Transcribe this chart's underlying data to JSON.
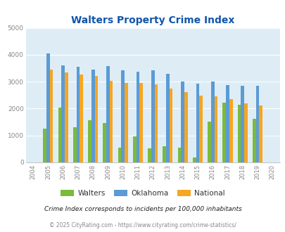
{
  "title": "Walters Property Crime Index",
  "years_all": [
    2004,
    2005,
    2006,
    2007,
    2008,
    2009,
    2010,
    2011,
    2012,
    2013,
    2014,
    2015,
    2016,
    2017,
    2018,
    2019,
    2020
  ],
  "walters": [
    null,
    1260,
    2050,
    1310,
    1580,
    1450,
    540,
    970,
    520,
    610,
    560,
    170,
    1510,
    2220,
    2130,
    1630,
    null
  ],
  "oklahoma": [
    null,
    4050,
    3610,
    3540,
    3450,
    3570,
    3420,
    3360,
    3430,
    3300,
    3000,
    2920,
    3010,
    2870,
    2860,
    2840,
    null
  ],
  "national": [
    null,
    3450,
    3340,
    3260,
    3220,
    3040,
    2950,
    2940,
    2890,
    2730,
    2600,
    2490,
    2460,
    2360,
    2200,
    2120,
    null
  ],
  "walters_color": "#7cba3a",
  "oklahoma_color": "#5b9bd5",
  "national_color": "#f5a623",
  "bg_color": "#deedf5",
  "grid_color": "#c5dde8",
  "title_color": "#1155aa",
  "tick_color": "#888888",
  "ylim": [
    0,
    5000
  ],
  "yticks": [
    0,
    1000,
    2000,
    3000,
    4000,
    5000
  ],
  "legend_labels": [
    "Walters",
    "Oklahoma",
    "National"
  ],
  "footnote1": "Crime Index corresponds to incidents per 100,000 inhabitants",
  "footnote2": "© 2025 CityRating.com - https://www.cityrating.com/crime-statistics/",
  "footnote1_color": "#222222",
  "footnote2_color": "#888888",
  "bar_width": 0.22
}
